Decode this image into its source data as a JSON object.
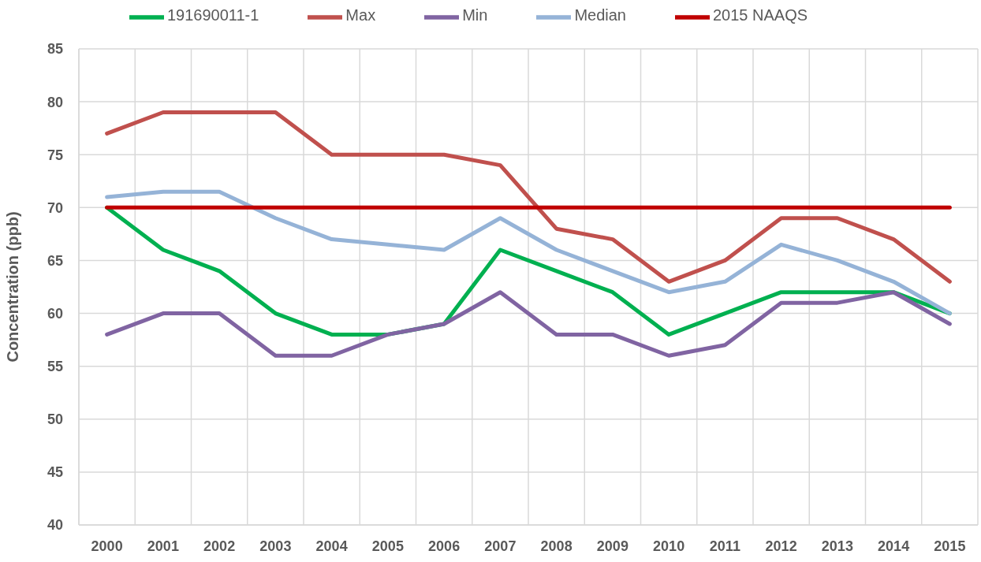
{
  "chart_data": {
    "type": "line",
    "ylabel": "Concentration (ppb)",
    "categories": [
      "2000",
      "2001",
      "2002",
      "2003",
      "2004",
      "2005",
      "2006",
      "2007",
      "2008",
      "2009",
      "2010",
      "2011",
      "2012",
      "2013",
      "2014",
      "2015"
    ],
    "series": [
      {
        "name": "191690011-1",
        "color": "#00b050",
        "values": [
          70,
          66,
          64,
          60,
          58,
          58,
          59,
          66,
          64,
          62,
          58,
          60,
          62,
          62,
          62,
          60
        ]
      },
      {
        "name": "Max",
        "color": "#c0504d",
        "values": [
          77,
          79,
          79,
          79,
          75,
          75,
          75,
          74,
          68,
          67,
          63,
          65,
          69,
          69,
          67,
          63
        ]
      },
      {
        "name": "Min",
        "color": "#8064a2",
        "values": [
          58,
          60,
          60,
          56,
          56,
          58,
          59,
          62,
          58,
          58,
          56,
          57,
          61,
          61,
          62,
          59
        ]
      },
      {
        "name": "Median",
        "color": "#95b3d7",
        "values": [
          71,
          71.5,
          71.5,
          69,
          67,
          66.5,
          66,
          69,
          66,
          64,
          62,
          63,
          66.5,
          65,
          63,
          60
        ]
      },
      {
        "name": "2015 NAAQS",
        "color": "#c00000",
        "values": [
          70,
          70,
          70,
          70,
          70,
          70,
          70,
          70,
          70,
          70,
          70,
          70,
          70,
          70,
          70,
          70
        ]
      }
    ],
    "ylim": [
      40,
      85
    ],
    "yticks": [
      40,
      45,
      50,
      55,
      60,
      65,
      70,
      75,
      80,
      85
    ],
    "grid": true,
    "legend": "top",
    "line_style": "solid"
  }
}
